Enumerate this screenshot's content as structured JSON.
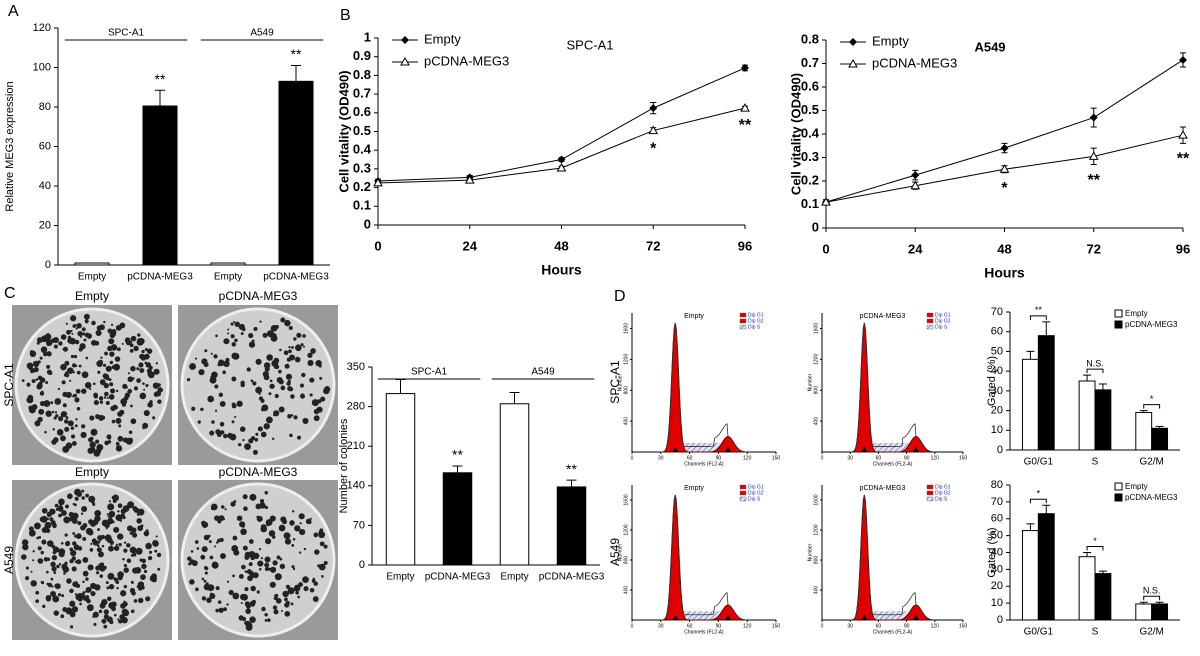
{
  "panels": [
    "A",
    "B",
    "C",
    "D"
  ],
  "photos": {
    "columns": [
      "Empty",
      "pCDNA-MEG3"
    ],
    "rows": [
      "SPC-A1",
      "A549"
    ]
  },
  "flow": {
    "columns": [
      "Empty",
      "pCDNA-MEG3"
    ],
    "rows": [
      "SPC-A1",
      "A549"
    ],
    "xlabel": "Channels (FL2-A)",
    "ylabel": "Number",
    "xlim": [
      0,
      150
    ],
    "xticks": [
      0,
      30,
      60,
      90,
      120,
      150
    ],
    "ylim": [
      0,
      1800
    ],
    "yticks": [
      400,
      800,
      1200,
      1600
    ],
    "legend": [
      "Dip G1",
      "Dip G2",
      "Dip S"
    ]
  },
  "chart_data": [
    {
      "type": "bar",
      "ylabel": "Relative MEG3 expression",
      "groups": [
        "SPC-A1",
        "A549"
      ],
      "categories": [
        "Empty",
        "pCDNA-MEG3",
        "Empty",
        "pCDNA-MEG3"
      ],
      "values": [
        1,
        80.5,
        1,
        93
      ],
      "errors": [
        0,
        8,
        0,
        8
      ],
      "colors": [
        "#ffffff",
        "#000000",
        "#ffffff",
        "#000000"
      ],
      "significance": [
        null,
        "**",
        null,
        "**"
      ],
      "ylim": [
        0,
        120
      ],
      "yticks": [
        0,
        20,
        40,
        60,
        80,
        100,
        120
      ]
    },
    {
      "type": "line",
      "title": "SPC-A1",
      "xlabel": "Hours",
      "ylabel": "Cell vitality (OD490)",
      "x": [
        0,
        24,
        48,
        72,
        96
      ],
      "xlim": [
        0,
        96
      ],
      "xticks": [
        0,
        24,
        48,
        72,
        96
      ],
      "ylim": [
        0,
        1
      ],
      "yticks": [
        0,
        0.1,
        0.2,
        0.3,
        0.4,
        0.5,
        0.6,
        0.7,
        0.8,
        0.9,
        1
      ],
      "series": [
        {
          "name": "Empty",
          "color": "#000000",
          "marker": "diamond",
          "values": [
            0.235,
            0.255,
            0.35,
            0.625,
            0.84
          ],
          "errors": [
            0.01,
            0.01,
            0.01,
            0.03,
            0.015
          ]
        },
        {
          "name": "pCDNA-MEG3",
          "color": "#000000",
          "marker": "triangle",
          "values": [
            0.225,
            0.24,
            0.305,
            0.505,
            0.625
          ],
          "errors": [
            0.01,
            0.01,
            0.01,
            0.015,
            0.01
          ]
        }
      ],
      "significance": [
        null,
        null,
        null,
        "*",
        "**"
      ]
    },
    {
      "type": "line",
      "title": "A549",
      "xlabel": "Hours",
      "ylabel": "Cell vitality (OD490)",
      "x": [
        0,
        24,
        48,
        72,
        96
      ],
      "xlim": [
        0,
        96
      ],
      "xticks": [
        0,
        24,
        48,
        72,
        96
      ],
      "ylim": [
        0,
        0.8
      ],
      "yticks": [
        0,
        0.1,
        0.2,
        0.3,
        0.4,
        0.5,
        0.6,
        0.7,
        0.8
      ],
      "series": [
        {
          "name": "Empty",
          "color": "#000000",
          "marker": "diamond",
          "values": [
            0.11,
            0.225,
            0.34,
            0.47,
            0.715
          ],
          "errors": [
            0.01,
            0.02,
            0.02,
            0.04,
            0.03
          ]
        },
        {
          "name": "pCDNA-MEG3",
          "color": "#000000",
          "marker": "triangle",
          "values": [
            0.11,
            0.18,
            0.25,
            0.305,
            0.395
          ],
          "errors": [
            0.01,
            0.015,
            0.015,
            0.035,
            0.035
          ]
        }
      ],
      "significance": [
        null,
        null,
        "*",
        "**",
        "**"
      ]
    },
    {
      "type": "bar",
      "ylabel": "Number of colonies",
      "groups": [
        "SPC-A1",
        "A549"
      ],
      "categories": [
        "Empty",
        "pCDNA-MEG3",
        "Empty",
        "pCDNA-MEG3"
      ],
      "values": [
        303,
        163,
        285,
        138
      ],
      "errors": [
        25,
        12,
        20,
        12
      ],
      "colors": [
        "#ffffff",
        "#000000",
        "#ffffff",
        "#000000"
      ],
      "significance": [
        null,
        "**",
        null,
        "**"
      ],
      "ylim": [
        0,
        350
      ],
      "yticks": [
        0,
        70,
        140,
        210,
        280,
        350
      ]
    },
    {
      "type": "bar",
      "ylabel": "Gated (%)",
      "categories": [
        "G0/G1",
        "S",
        "G2/M"
      ],
      "series": [
        {
          "name": "Empty",
          "color": "#ffffff",
          "values": [
            46,
            35,
            19
          ],
          "errors": [
            4,
            3,
            1
          ]
        },
        {
          "name": "pCDNA-MEG3",
          "color": "#000000",
          "values": [
            58,
            30.5,
            11
          ],
          "errors": [
            7,
            3,
            1
          ]
        }
      ],
      "significance": [
        "**",
        "N.S.",
        "*"
      ],
      "ylim": [
        0,
        70
      ],
      "yticks": [
        0,
        10,
        20,
        30,
        40,
        50,
        60,
        70
      ],
      "legend": "upper-right"
    },
    {
      "type": "bar",
      "ylabel": "Gated (%)",
      "categories": [
        "G0/G1",
        "S",
        "G2/M"
      ],
      "series": [
        {
          "name": "Empty",
          "color": "#ffffff",
          "values": [
            53,
            37.5,
            9.5
          ],
          "errors": [
            4,
            2.5,
            1
          ]
        },
        {
          "name": "pCDNA-MEG3",
          "color": "#000000",
          "values": [
            63,
            27.5,
            9.5
          ],
          "errors": [
            5,
            1.5,
            1
          ]
        }
      ],
      "significance": [
        "*",
        "*",
        "N.S."
      ],
      "ylim": [
        0,
        80
      ],
      "yticks": [
        0,
        10,
        20,
        30,
        40,
        50,
        60,
        70,
        80
      ],
      "legend": "upper-right"
    }
  ]
}
